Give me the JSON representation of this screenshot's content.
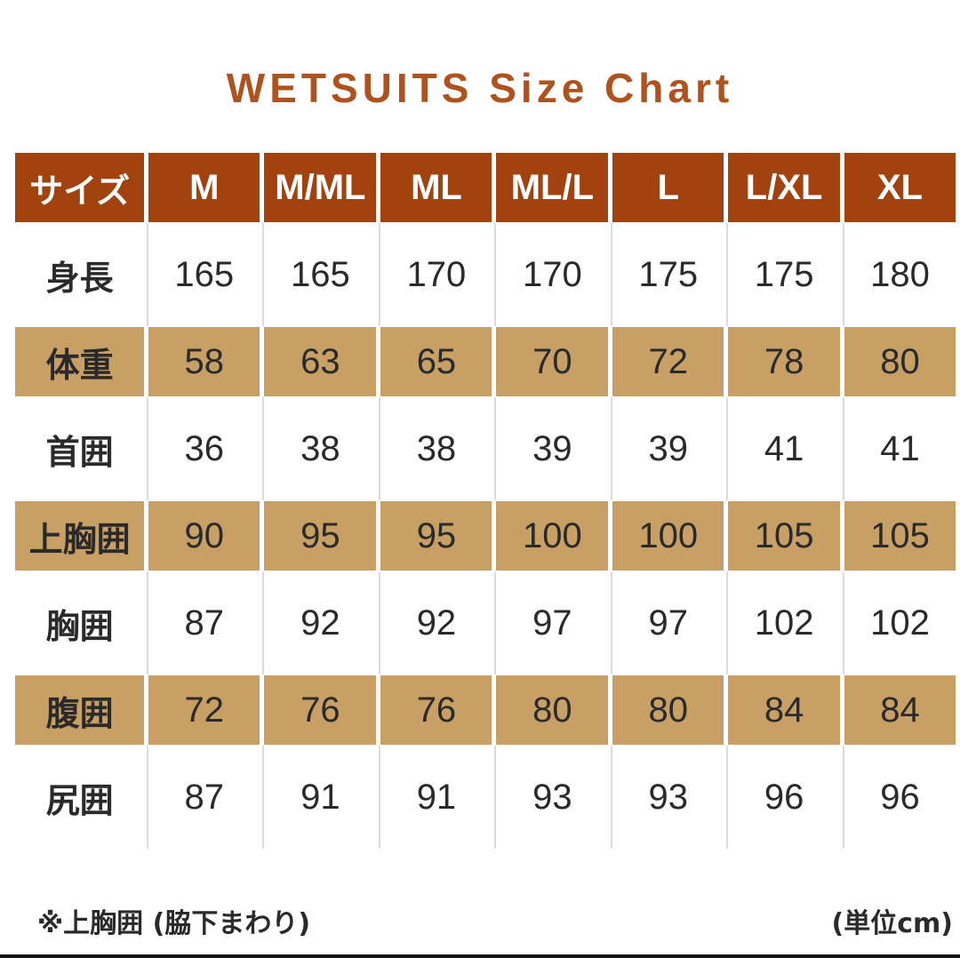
{
  "title": "WETSUITS Size Chart",
  "table": {
    "header": [
      "サイズ",
      "M",
      "M/ML",
      "ML",
      "ML/L",
      "L",
      "L/XL",
      "XL"
    ],
    "rows": [
      {
        "label": "身長",
        "values": [
          "165",
          "165",
          "170",
          "170",
          "175",
          "175",
          "180"
        ]
      },
      {
        "label": "体重",
        "values": [
          "58",
          "63",
          "65",
          "70",
          "72",
          "78",
          "80"
        ]
      },
      {
        "label": "首囲",
        "values": [
          "36",
          "38",
          "38",
          "39",
          "39",
          "41",
          "41"
        ]
      },
      {
        "label": "上胸囲",
        "values": [
          "90",
          "95",
          "95",
          "100",
          "100",
          "105",
          "105"
        ]
      },
      {
        "label": "胸囲",
        "values": [
          "87",
          "92",
          "92",
          "97",
          "97",
          "102",
          "102"
        ]
      },
      {
        "label": "腹囲",
        "values": [
          "72",
          "76",
          "76",
          "80",
          "80",
          "84",
          "84"
        ]
      },
      {
        "label": "尻囲",
        "values": [
          "87",
          "91",
          "91",
          "93",
          "93",
          "96",
          "96"
        ]
      }
    ]
  },
  "footnote": "※上胸囲 (脇下まわり)",
  "unit_note": "(単位cm)",
  "colors": {
    "header": "#a2420e",
    "stripe": "#c8a066",
    "title": "#b0521e"
  }
}
